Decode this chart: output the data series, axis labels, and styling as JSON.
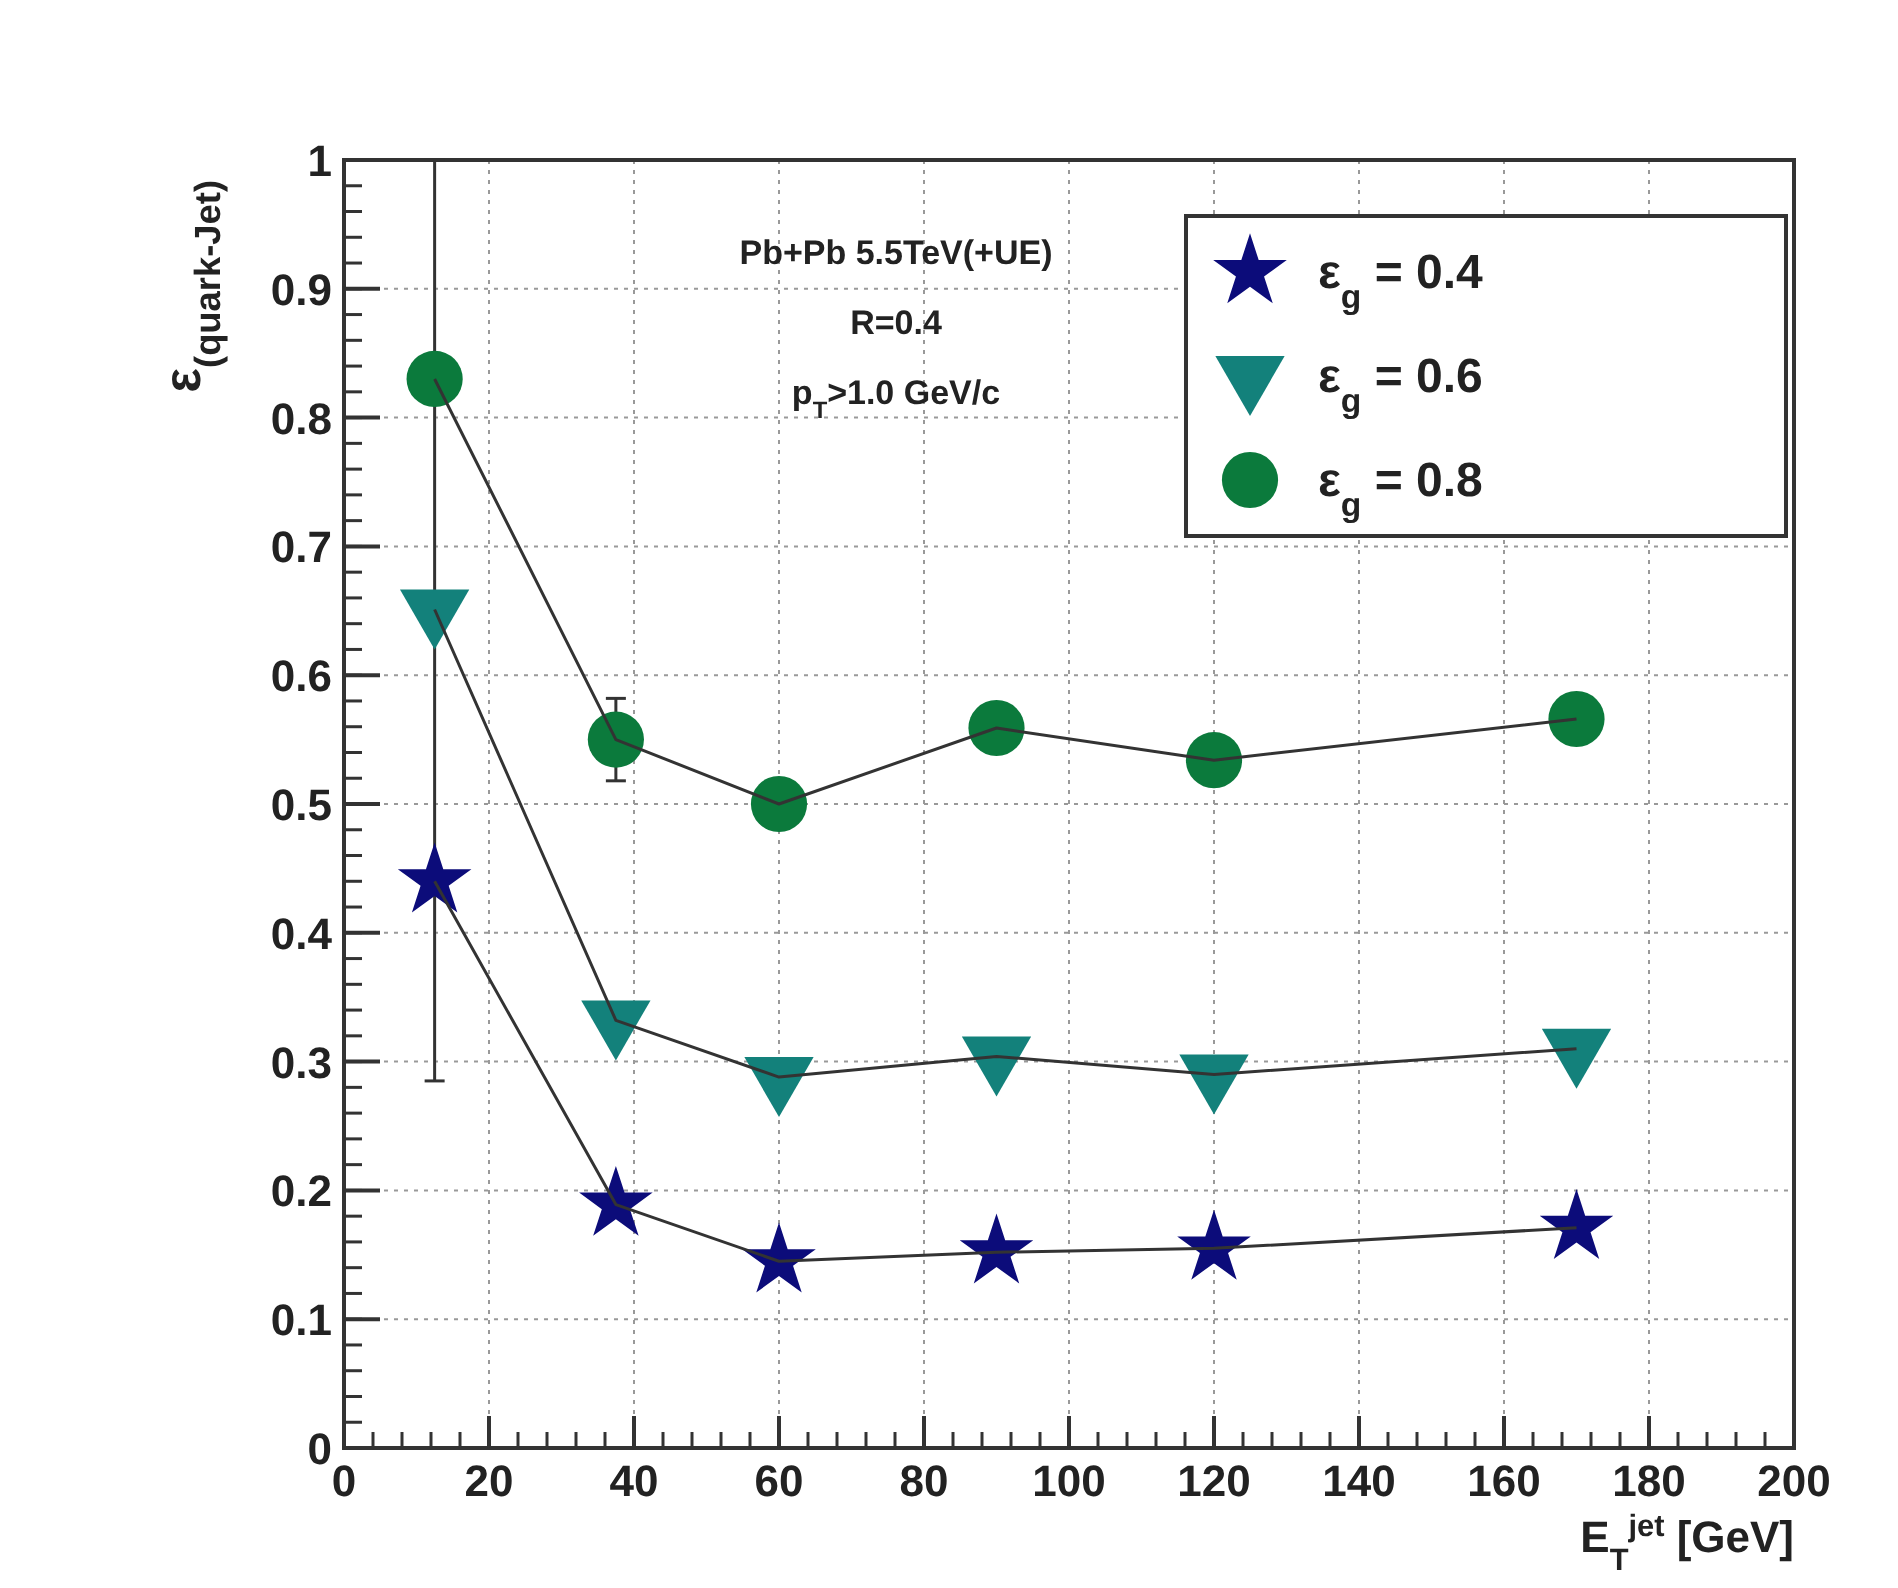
{
  "chart_data": {
    "type": "line",
    "xlabel": "E$_{T}$$^{jet}$ [GeV]",
    "ylabel": "ε$_{(quark-Jet)}$",
    "annotations": [
      "Pb+Pb 5.5TeV(+UE)",
      "R=0.4",
      "p$_{T}$>1.0 GeV/c"
    ],
    "x": [
      12.5,
      37.5,
      60,
      90,
      120,
      170
    ],
    "series": [
      {
        "name": "ε$_{g}$ = 0.4",
        "color": "#0c0c7a",
        "marker": "star",
        "values": [
          0.44,
          0.189,
          0.145,
          0.152,
          0.155,
          0.171
        ],
        "errors": [
          [
            0.285,
            1.0
          ],
          null,
          null,
          null,
          null,
          null
        ]
      },
      {
        "name": "ε$_{g}$ = 0.6",
        "color": "#13817b",
        "marker": "triangle",
        "values": [
          0.651,
          0.332,
          0.288,
          0.304,
          0.29,
          0.31
        ]
      },
      {
        "name": "ε$_{g}$ = 0.8",
        "color": "#0b7a3c",
        "marker": "circle",
        "values": [
          0.83,
          0.55,
          0.5,
          0.559,
          0.534,
          0.566
        ],
        "errors": [
          null,
          [
            0.518,
            0.582
          ],
          null,
          null,
          null,
          null
        ]
      }
    ],
    "xlim": [
      0,
      200
    ],
    "xticks": [
      0,
      20,
      40,
      60,
      80,
      100,
      120,
      140,
      160,
      180,
      200
    ],
    "ylim": [
      0,
      1
    ],
    "yticks": [
      0,
      0.1,
      0.2,
      0.3,
      0.4,
      0.5,
      0.6,
      0.7,
      0.8,
      0.9,
      1
    ],
    "grid": true,
    "legend": "top right",
    "line_style": "solid"
  }
}
